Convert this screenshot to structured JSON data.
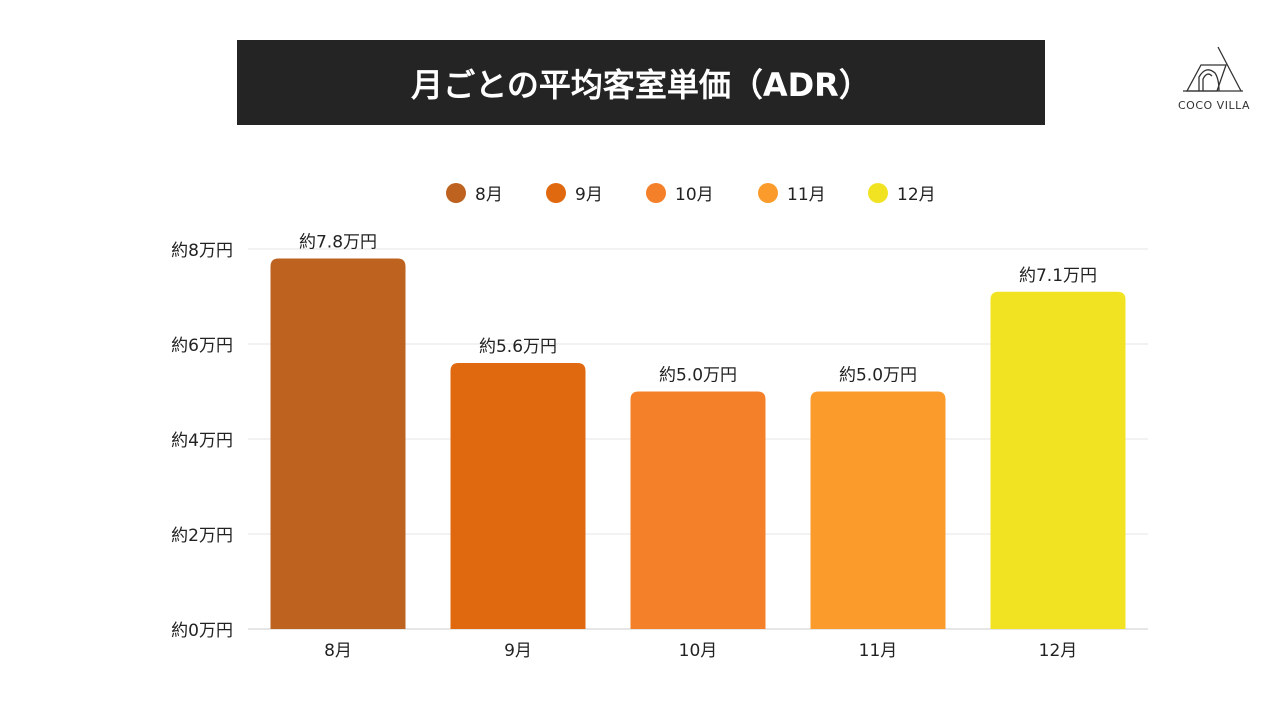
{
  "title": "月ごとの平均客室単価（ADR）",
  "logo": {
    "text": "COCO VILLA"
  },
  "chart_data": {
    "type": "bar",
    "title": "月ごとの平均客室単価（ADR）",
    "categories": [
      "8月",
      "9月",
      "10月",
      "11月",
      "12月"
    ],
    "values": [
      7.8,
      5.6,
      5.0,
      5.0,
      7.1
    ],
    "data_labels": [
      "約7.8万円",
      "約5.6万円",
      "約5.0万円",
      "約5.0万円",
      "約7.1万円"
    ],
    "colors": [
      "#BD621F",
      "#E0690F",
      "#F5802A",
      "#FA9B2B",
      "#F1E322"
    ],
    "yticks": [
      0,
      2,
      4,
      6,
      8
    ],
    "ytick_labels": [
      "約0万円",
      "約2万円",
      "約4万円",
      "約6万円",
      "約8万円"
    ],
    "ylim": [
      0,
      8
    ],
    "xlabel": "",
    "ylabel": "",
    "grid": true,
    "legend": {
      "position": "top",
      "entries": [
        "8月",
        "9月",
        "10月",
        "11月",
        "12月"
      ]
    }
  }
}
